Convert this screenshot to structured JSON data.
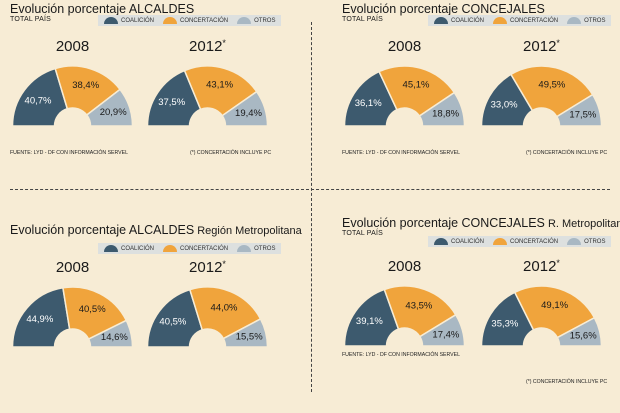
{
  "colors": {
    "coalicion": "#3d5a6e",
    "concertacion": "#f0a43c",
    "otros": "#a9b8c3"
  },
  "legend": {
    "coalicion": "COALICIÓN",
    "concertacion": "CONCERTACIÓN",
    "otros": "OTROS"
  },
  "panels": [
    {
      "title_main": "Evolución porcentaje ",
      "title_strong": "ALCALDES",
      "title_suffix": "",
      "subtitle": "TOTAL PAÍS",
      "source": "FUENTE: LYD - DF CON INFORMACIÓN SERVEL",
      "note": "(*) CONCERTACIÓN INCLUYE PC",
      "year_a": "2008",
      "year_b": "2012",
      "year_b_mark": "*",
      "chart_a_labels": [
        "40,7%",
        "38,4%",
        "20,9%"
      ],
      "chart_b_labels": [
        "37,5%",
        "43,1%",
        "19,4%"
      ]
    },
    {
      "title_main": "Evolución porcentaje ",
      "title_strong": "CONCEJALES",
      "title_suffix": "",
      "subtitle": "TOTAL PAÍS",
      "source": "FUENTE: LYD - DF CON INFORMACIÓN SERVEL",
      "note": "(*) CONCERTACIÓN INCLUYE PC",
      "year_a": "2008",
      "year_b": "2012",
      "year_b_mark": "*",
      "chart_a_labels": [
        "36,1%",
        "45,1%",
        "18,8%"
      ],
      "chart_b_labels": [
        "33,0%",
        "49,5%",
        "17,5%"
      ]
    },
    {
      "title_main": "Evolución porcentaje ",
      "title_strong": "ALCALDES",
      "title_suffix": " Región Metropolitana",
      "subtitle": "",
      "source": "",
      "note": "",
      "year_a": "2008",
      "year_b": "2012",
      "year_b_mark": "*",
      "chart_a_labels": [
        "44,9%",
        "40,5%",
        "14,6%"
      ],
      "chart_b_labels": [
        "40,5%",
        "44,0%",
        "15,5%"
      ]
    },
    {
      "title_main": "Evolución porcentaje ",
      "title_strong": "CONCEJALES",
      "title_suffix": " R. Metropolitana",
      "subtitle": "TOTAL PAÍS",
      "source": "FUENTE: LYD - DF CON INFORMACIÓN SERVEL",
      "note": "(*) CONCERTACIÓN INCLUYE PC",
      "year_a": "2008",
      "year_b": "2012",
      "year_b_mark": "*",
      "chart_a_labels": [
        "39,1%",
        "43,5%",
        "17,4%"
      ],
      "chart_b_labels": [
        "35,3%",
        "49,1%",
        "15,6%"
      ]
    }
  ],
  "chart_data": [
    {
      "type": "pie",
      "title": "Evolución porcentaje ALCALDES",
      "subtitle": "TOTAL PAÍS",
      "year": "2008",
      "categories": [
        "COALICIÓN",
        "CONCERTACIÓN",
        "OTROS"
      ],
      "values": [
        40.7,
        38.4,
        20.9
      ]
    },
    {
      "type": "pie",
      "title": "Evolución porcentaje ALCALDES",
      "subtitle": "TOTAL PAÍS",
      "year": "2012*",
      "categories": [
        "COALICIÓN",
        "CONCERTACIÓN",
        "OTROS"
      ],
      "values": [
        37.5,
        43.1,
        19.4
      ]
    },
    {
      "type": "pie",
      "title": "Evolución porcentaje CONCEJALES",
      "subtitle": "TOTAL PAÍS",
      "year": "2008",
      "categories": [
        "COALICIÓN",
        "CONCERTACIÓN",
        "OTROS"
      ],
      "values": [
        36.1,
        45.1,
        18.8
      ]
    },
    {
      "type": "pie",
      "title": "Evolución porcentaje CONCEJALES",
      "subtitle": "TOTAL PAÍS",
      "year": "2012*",
      "categories": [
        "COALICIÓN",
        "CONCERTACIÓN",
        "OTROS"
      ],
      "values": [
        33.0,
        49.5,
        17.5
      ]
    },
    {
      "type": "pie",
      "title": "Evolución porcentaje ALCALDES Región Metropolitana",
      "year": "2008",
      "categories": [
        "COALICIÓN",
        "CONCERTACIÓN",
        "OTROS"
      ],
      "values": [
        44.9,
        40.5,
        14.6
      ]
    },
    {
      "type": "pie",
      "title": "Evolución porcentaje ALCALDES Región Metropolitana",
      "year": "2012*",
      "categories": [
        "COALICIÓN",
        "CONCERTACIÓN",
        "OTROS"
      ],
      "values": [
        40.5,
        44.0,
        15.5
      ]
    },
    {
      "type": "pie",
      "title": "Evolución porcentaje CONCEJALES R. Metropolitana",
      "subtitle": "TOTAL PAÍS",
      "year": "2008",
      "categories": [
        "COALICIÓN",
        "CONCERTACIÓN",
        "OTROS"
      ],
      "values": [
        39.1,
        43.5,
        17.4
      ]
    },
    {
      "type": "pie",
      "title": "Evolución porcentaje CONCEJALES R. Metropolitana",
      "subtitle": "TOTAL PAÍS",
      "year": "2012*",
      "categories": [
        "COALICIÓN",
        "CONCERTACIÓN",
        "OTROS"
      ],
      "values": [
        35.3,
        49.1,
        15.6
      ]
    }
  ]
}
